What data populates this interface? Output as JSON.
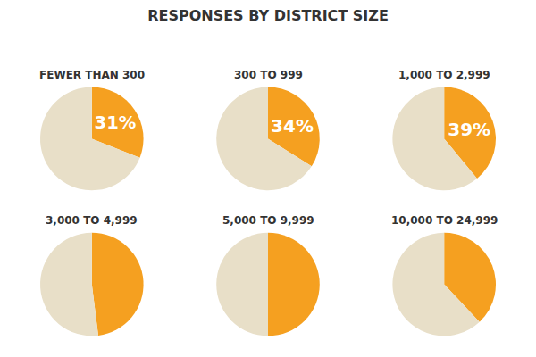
{
  "title": "RESPONSES BY DISTRICT SIZE",
  "chart_data": [
    {
      "type": "pie",
      "title": "FEWER THAN 300",
      "values": [
        31,
        69
      ],
      "value_labels": [
        "31%",
        null
      ],
      "colors": [
        "#f5a020",
        "#e8dfc8"
      ],
      "data_labels": true
    },
    {
      "type": "pie",
      "title": "300 TO 999",
      "values": [
        34,
        66
      ],
      "value_labels": [
        "34%",
        null
      ],
      "colors": [
        "#f5a020",
        "#e8dfc8"
      ],
      "data_labels": true
    },
    {
      "type": "pie",
      "title": "1,000 TO 2,999",
      "values": [
        39,
        61
      ],
      "value_labels": [
        "39%",
        null
      ],
      "colors": [
        "#f5a020",
        "#e8dfc8"
      ],
      "data_labels": true
    },
    {
      "type": "pie",
      "title": "3,000 TO 4,999",
      "values": [
        48,
        52
      ],
      "colors": [
        "#f5a020",
        "#e8dfc8"
      ],
      "data_labels": false
    },
    {
      "type": "pie",
      "title": "5,000 TO 9,999",
      "values": [
        50,
        50
      ],
      "colors": [
        "#f5a020",
        "#e8dfc8"
      ],
      "data_labels": false
    },
    {
      "type": "pie",
      "title": "10,000 TO 24,999",
      "values": [
        38,
        62
      ],
      "colors": [
        "#f5a020",
        "#e8dfc8"
      ],
      "data_labels": false
    }
  ]
}
